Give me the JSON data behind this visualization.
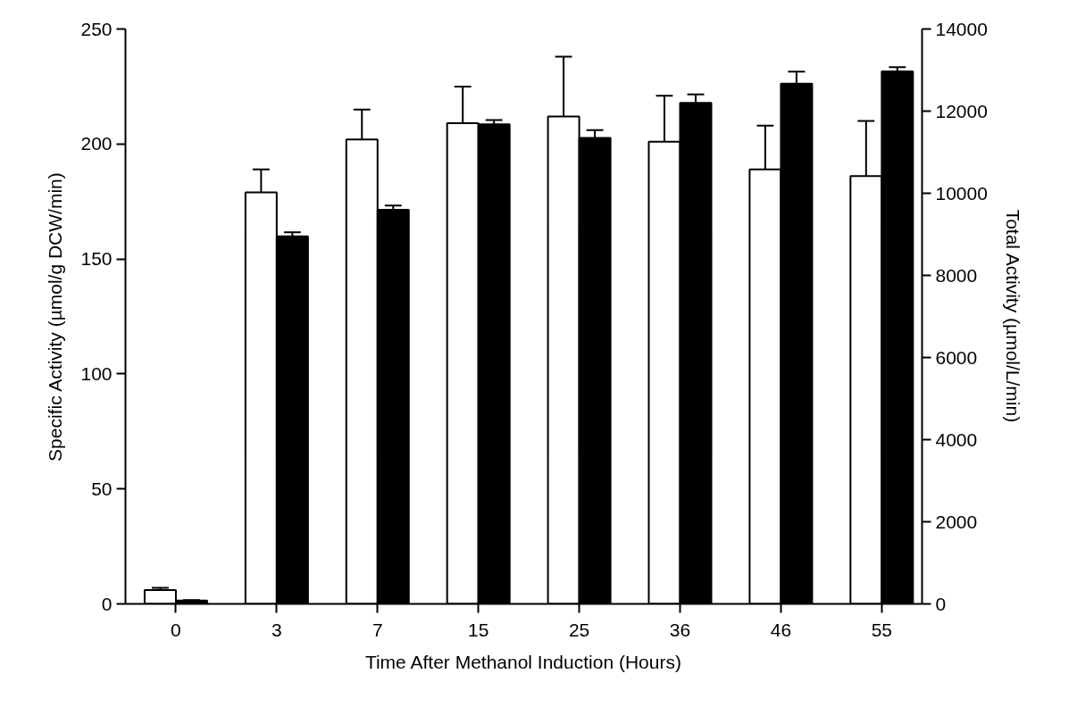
{
  "chart_data": {
    "type": "bar",
    "xlabel": "Time After Methanol Induction (Hours)",
    "ylabel": "Specific Activity (µmol/g DCW/min)",
    "y2label": "Total Activity (µmol/L/min)",
    "categories": [
      "0",
      "3",
      "7",
      "15",
      "25",
      "36",
      "46",
      "55"
    ],
    "series": [
      {
        "color": "#ffffff",
        "values": [
          6,
          179,
          202,
          209,
          212,
          201,
          189,
          186
        ],
        "errors": [
          [
            6,
            7
          ],
          [
            179,
            189
          ],
          [
            202,
            215
          ],
          [
            209,
            225
          ],
          [
            212,
            238
          ],
          [
            201,
            221
          ],
          [
            189,
            208
          ],
          [
            186,
            210
          ]
        ]
      },
      {
        "color": "#000000",
        "axis": "y2",
        "values": [
          80,
          8950,
          9600,
          11680,
          11350,
          12200,
          12670,
          12970
        ],
        "errors": [
          [
            80,
            90
          ],
          [
            8950,
            9050
          ],
          [
            9600,
            9700
          ],
          [
            11680,
            11780
          ],
          [
            11350,
            11540
          ],
          [
            12200,
            12410
          ],
          [
            12670,
            12960
          ],
          [
            12970,
            13070
          ]
        ]
      }
    ],
    "ylim": [
      0,
      250
    ],
    "yticks": [
      0,
      50,
      100,
      150,
      200,
      250
    ],
    "y2lim": [
      0,
      14000
    ],
    "y2ticks": [
      0,
      2000,
      4000,
      6000,
      8000,
      10000,
      12000,
      14000
    ],
    "grid": false
  }
}
